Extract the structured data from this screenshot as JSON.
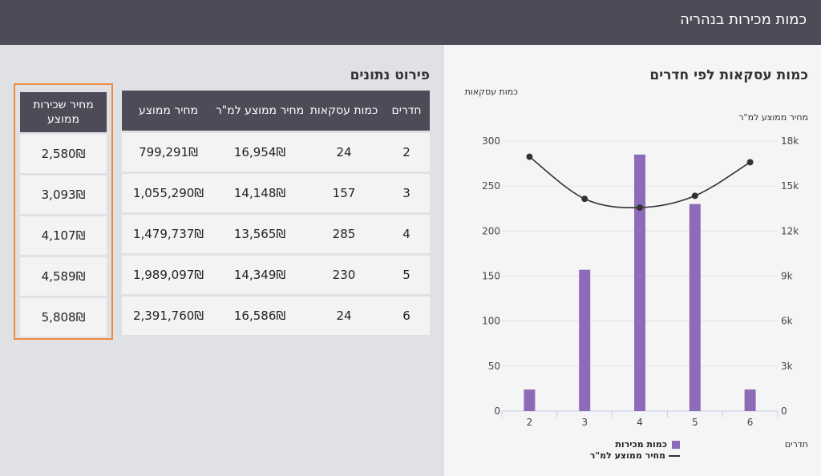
{
  "header": {
    "title": "כמות מכירות בנהריה"
  },
  "chart_data": {
    "type": "bar",
    "title": "כמות עסקאות לפי חדרים",
    "xlabel": "חדרים",
    "y_left_label": "כמות עסקאות",
    "y_right_label": "מחיר ממוצע למ\"ר",
    "categories": [
      "2",
      "3",
      "4",
      "5",
      "6"
    ],
    "y_left_range": [
      0,
      300
    ],
    "y_left_ticks": [
      "0",
      "50",
      "100",
      "150",
      "200",
      "250",
      "300"
    ],
    "y_right_range": [
      0,
      18000
    ],
    "y_right_ticks": [
      "0",
      "3k",
      "6k",
      "9k",
      "12k",
      "15k",
      "18k"
    ],
    "series": [
      {
        "name": "כמות מכירות",
        "type": "bar",
        "axis": "left",
        "color": "#8e6bb8",
        "values": [
          24,
          157,
          285,
          230,
          24
        ]
      },
      {
        "name": "מחיר ממוצע למ\"ר",
        "type": "line",
        "axis": "right",
        "color": "#333333",
        "values": [
          16954,
          14148,
          13565,
          14349,
          16586
        ]
      }
    ],
    "legend": "bottom",
    "grid": true
  },
  "table": {
    "title": "פירוט נתונים",
    "headers": [
      "חדרים",
      "כמות עסקאות",
      "מחיר ממוצע למ\"ר",
      "מחיר ממוצע"
    ],
    "rows": [
      [
        "2",
        "24",
        "16,954₪",
        "799,291₪"
      ],
      [
        "3",
        "157",
        "14,148₪",
        "1,055,290₪"
      ],
      [
        "4",
        "285",
        "13,565₪",
        "1,479,737₪"
      ],
      [
        "5",
        "230",
        "14,349₪",
        "1,989,097₪"
      ],
      [
        "6",
        "24",
        "16,586₪",
        "2,391,760₪"
      ]
    ]
  },
  "rent_table": {
    "header": "מחיר שכירות ממוצע",
    "rows": [
      "2,580₪",
      "3,093₪",
      "4,107₪",
      "4,589₪",
      "5,808₪"
    ]
  }
}
